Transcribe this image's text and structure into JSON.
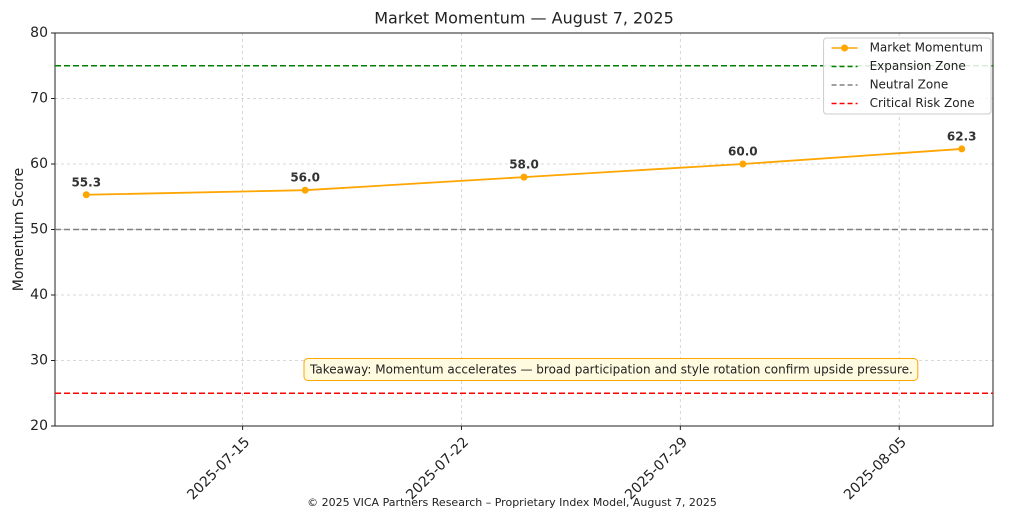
{
  "chart_data": {
    "type": "line",
    "title": "Market Momentum — August 7, 2025",
    "ylabel": "Momentum Score",
    "x": [
      "2025-07-10",
      "2025-07-17",
      "2025-07-24",
      "2025-07-31",
      "2025-08-07"
    ],
    "series": [
      {
        "name": "Market Momentum",
        "color": "#ffa500",
        "values": [
          55.3,
          56.0,
          58.0,
          60.0,
          62.3
        ],
        "value_labels": [
          "55.3",
          "56.0",
          "58.0",
          "60.0",
          "62.3"
        ]
      }
    ],
    "reference_lines": [
      {
        "name": "Expansion Zone",
        "value": 75,
        "color": "#008000"
      },
      {
        "name": "Neutral Zone",
        "value": 50,
        "color": "#808080"
      },
      {
        "name": "Critical Risk Zone",
        "value": 25,
        "color": "#ff0000"
      }
    ],
    "xlim": [
      "2025-07-09",
      "2025-08-08"
    ],
    "xticks": [
      "2025-07-15",
      "2025-07-22",
      "2025-07-29",
      "2025-08-05"
    ],
    "ylim": [
      20,
      80
    ],
    "yticks": [
      20,
      30,
      40,
      50,
      60,
      70,
      80
    ],
    "grid": true,
    "legend": "upper right",
    "annotation": "Takeaway: Momentum accelerates — broad participation and style rotation confirm upside pressure.",
    "footer": "© 2025 VICA Partners Research – Proprietary Index Model, August 7, 2025"
  }
}
